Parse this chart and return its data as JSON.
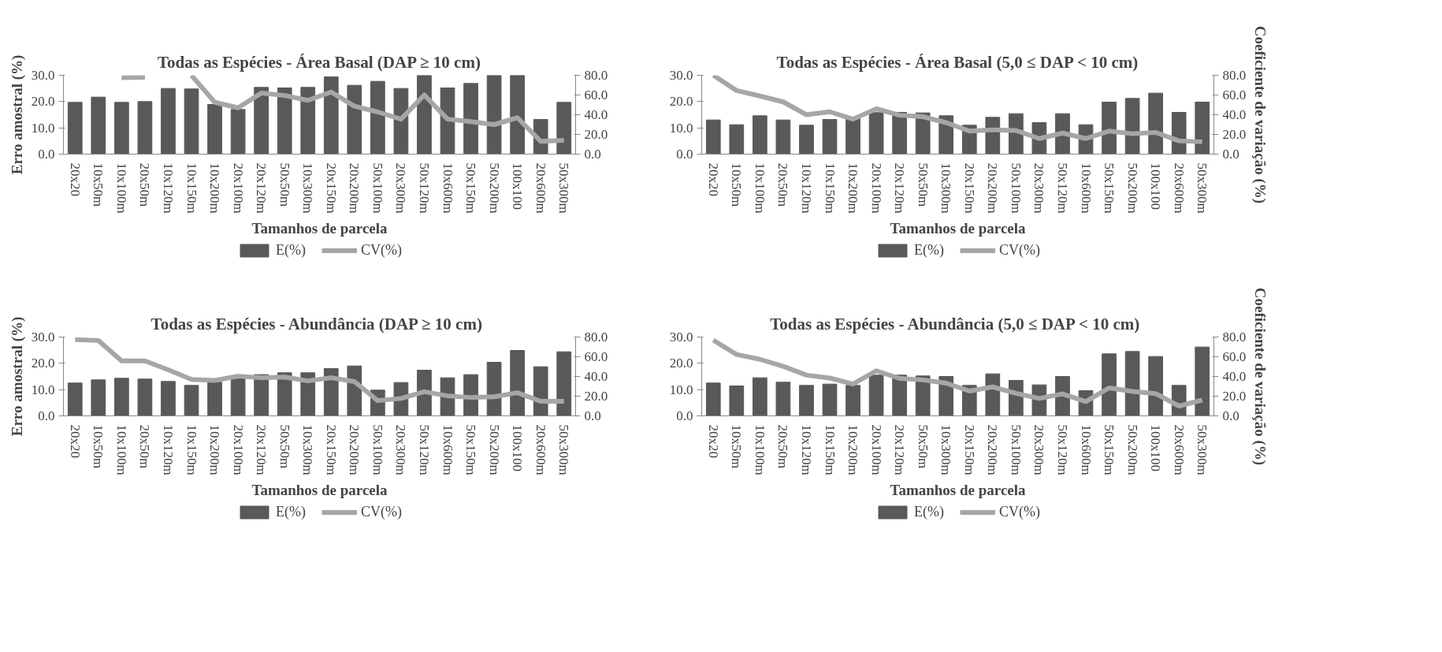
{
  "chart_data": [
    {
      "type": "bar",
      "title": "Todas as Espécies - Área Basal (DAP ≥ 10 cm)",
      "xlabel": "Tamanhos de parcela",
      "ylabel": "Erro amostral (%)",
      "legend": "bottom",
      "categories": [
        "20x20",
        "10x50m",
        "10x100m",
        "20x50m",
        "10x120m",
        "10x150m",
        "10x200m",
        "20x100m",
        "20x120m",
        "50x50m",
        "10x300m",
        "20x150m",
        "20x200m",
        "50x100m",
        "20x300m",
        "50x120m",
        "10x600m",
        "50x150m",
        "50x200m",
        "100x100",
        "20x600m",
        "50x300m"
      ],
      "ylim": [
        0,
        30
      ],
      "yticks": [
        {
          "value": 0,
          "label": "0.0"
        },
        {
          "value": 10,
          "label": "10.0"
        },
        {
          "value": 20,
          "label": "20.0"
        },
        {
          "value": 30,
          "label": "30.0"
        }
      ],
      "y2lim": [
        0,
        80
      ],
      "y2ticks": [
        {
          "value": 0,
          "label": "0.0"
        },
        {
          "value": 20,
          "label": "20.0"
        },
        {
          "value": 40,
          "label": "40.0"
        },
        {
          "value": 60,
          "label": "60.0"
        },
        {
          "value": 80,
          "label": "80.0"
        }
      ],
      "series": [
        {
          "name": "E(%)",
          "type": "bar",
          "color": "#595959",
          "values": [
            19.7,
            21.7,
            19.7,
            20.0,
            25.0,
            24.8,
            18.9,
            17.0,
            25.4,
            25.2,
            25.4,
            29.4,
            26.2,
            27.7,
            25.0,
            30,
            25.2,
            26.9,
            30,
            30,
            13.2,
            19.7
          ]
        },
        {
          "name": "CV(%)",
          "type": "line",
          "axis": "y2",
          "color": "#a6a6a6",
          "values": [
            null,
            null,
            77.6,
            78,
            null,
            80,
            52.6,
            47,
            62,
            59.5,
            54.6,
            63,
            48.7,
            42.8,
            35.5,
            60,
            35.5,
            33,
            30,
            37,
            13,
            14
          ]
        }
      ]
    },
    {
      "type": "bar",
      "title": "Todas as Espécies - Área Basal (5,0 ≤ DAP < 10 cm)",
      "xlabel": "Tamanhos de parcela",
      "y2label": "Coeficiente de variação (%)",
      "legend": "bottom",
      "categories": [
        "20x20",
        "10x50m",
        "10x100m",
        "20x50m",
        "10x120m",
        "10x150m",
        "10x200m",
        "20x100m",
        "20x120m",
        "50x50m",
        "10x300m",
        "20x150m",
        "20x200m",
        "50x100m",
        "20x300m",
        "50x120m",
        "10x600m",
        "50x150m",
        "50x200m",
        "100x100",
        "20x600m",
        "50x300m"
      ],
      "ylim": [
        0,
        30
      ],
      "yticks": [
        {
          "value": 0,
          "label": "0.0"
        },
        {
          "value": 10,
          "label": "10.0"
        },
        {
          "value": 20,
          "label": "20.0"
        },
        {
          "value": 30,
          "label": "30.0"
        }
      ],
      "y2lim": [
        0,
        80
      ],
      "y2ticks": [
        {
          "value": 0,
          "label": "0.0"
        },
        {
          "value": 20,
          "label": "20.0"
        },
        {
          "value": 40,
          "label": "40.0"
        },
        {
          "value": 60,
          "label": "60.0"
        },
        {
          "value": 80,
          "label": "80.0"
        }
      ],
      "series": [
        {
          "name": "E(%)",
          "type": "bar",
          "color": "#595959",
          "values": [
            13.0,
            11.2,
            14.6,
            13.0,
            11.0,
            13.2,
            13.5,
            15.8,
            15.9,
            15.7,
            14.6,
            11.0,
            14.0,
            15.4,
            12.0,
            15.4,
            11.2,
            19.8,
            21.2,
            23.2,
            15.9,
            19.8
          ]
        },
        {
          "name": "CV(%)",
          "type": "line",
          "axis": "y2",
          "color": "#a6a6a6",
          "values": [
            80,
            64.5,
            59,
            53,
            40,
            43,
            35.5,
            46,
            39.5,
            38,
            32,
            23.4,
            24.7,
            24,
            15.8,
            21.4,
            15.8,
            23.4,
            20.7,
            22,
            13.5,
            12.5
          ]
        }
      ]
    },
    {
      "type": "bar",
      "title": "Todas as Espécies - Abundância  (DAP ≥ 10 cm)",
      "xlabel": "Tamanhos de parcela",
      "ylabel": "Erro amostral (%)",
      "legend": "bottom",
      "categories": [
        "20x20",
        "10x50m",
        "10x100m",
        "20x50m",
        "10x120m",
        "10x150m",
        "10x200m",
        "20x100m",
        "20x120m",
        "50x50m",
        "10x300m",
        "20x150m",
        "20x200m",
        "50x100m",
        "20x300m",
        "50x120m",
        "10x600m",
        "50x150m",
        "50x200m",
        "100x100",
        "20x600m",
        "50x300m"
      ],
      "ylim": [
        0,
        30
      ],
      "yticks": [
        {
          "value": 0,
          "label": "0.0"
        },
        {
          "value": 10,
          "label": "10.0"
        },
        {
          "value": 20,
          "label": "20.0"
        },
        {
          "value": 30,
          "label": "30.0"
        }
      ],
      "y2lim": [
        0,
        80
      ],
      "y2ticks": [
        {
          "value": 0,
          "label": "0.0"
        },
        {
          "value": 20,
          "label": "20.0"
        },
        {
          "value": 40,
          "label": "40.0"
        },
        {
          "value": 60,
          "label": "60.0"
        },
        {
          "value": 80,
          "label": "80.0"
        }
      ],
      "series": [
        {
          "name": "E(%)",
          "type": "bar",
          "color": "#595959",
          "values": [
            12.5,
            13.7,
            14.3,
            14.0,
            13.1,
            11.6,
            12.8,
            14.5,
            15.7,
            16.4,
            16.4,
            18.0,
            19.0,
            9.8,
            12.7,
            17.4,
            14.5,
            15.7,
            20.4,
            24.9,
            18.7,
            24.4
          ]
        },
        {
          "name": "CV(%)",
          "type": "line",
          "axis": "y2",
          "color": "#a6a6a6",
          "values": [
            77.4,
            76.5,
            55.8,
            55.8,
            46.8,
            37,
            36,
            40.3,
            38.7,
            39.4,
            35.5,
            38.7,
            34.8,
            15.5,
            17.7,
            24.5,
            20.3,
            18.7,
            19.4,
            23.5,
            14.8,
            14.8
          ]
        }
      ]
    },
    {
      "type": "bar",
      "title": "Todas as Espécies - Abundância  (5,0 ≤ DAP < 10 cm)",
      "xlabel": "Tamanhos de parcela",
      "y2label": "Coeficiente de variação (%)",
      "legend": "bottom",
      "categories": [
        "20x20",
        "10x50m",
        "10x100m",
        "20x50m",
        "10x120m",
        "10x150m",
        "10x200m",
        "20x100m",
        "20x120m",
        "50x50m",
        "10x300m",
        "20x150m",
        "20x200m",
        "50x100m",
        "20x300m",
        "50x120m",
        "10x600m",
        "50x150m",
        "50x200m",
        "100x100",
        "20x600m",
        "50x300m"
      ],
      "ylim": [
        0,
        30
      ],
      "yticks": [
        {
          "value": 0,
          "label": "0.0"
        },
        {
          "value": 10,
          "label": "10.0"
        },
        {
          "value": 20,
          "label": "20.0"
        },
        {
          "value": 30,
          "label": "30.0"
        }
      ],
      "y2lim": [
        0,
        80
      ],
      "y2ticks": [
        {
          "value": 0,
          "label": "0.0"
        },
        {
          "value": 20,
          "label": "20.0"
        },
        {
          "value": 40,
          "label": "40.0"
        },
        {
          "value": 60,
          "label": "60.0"
        },
        {
          "value": 80,
          "label": "80.0"
        }
      ],
      "series": [
        {
          "name": "E(%)",
          "type": "bar",
          "color": "#595959",
          "values": [
            12.5,
            11.4,
            14.5,
            12.8,
            11.6,
            12.1,
            11.6,
            15.5,
            15.5,
            15.2,
            15.0,
            11.6,
            16.0,
            13.5,
            11.8,
            15.0,
            9.6,
            23.6,
            24.5,
            22.6,
            11.6,
            26.2
          ]
        },
        {
          "name": "CV(%)",
          "type": "line",
          "axis": "y2",
          "color": "#a6a6a6",
          "values": [
            76.8,
            62.3,
            57.4,
            50.3,
            41.3,
            38.4,
            32.3,
            45.8,
            38,
            36.5,
            33.2,
            25.2,
            29.4,
            22.9,
            17.7,
            22.3,
            14.5,
            28.4,
            24.8,
            22.6,
            10,
            16
          ]
        }
      ]
    }
  ]
}
